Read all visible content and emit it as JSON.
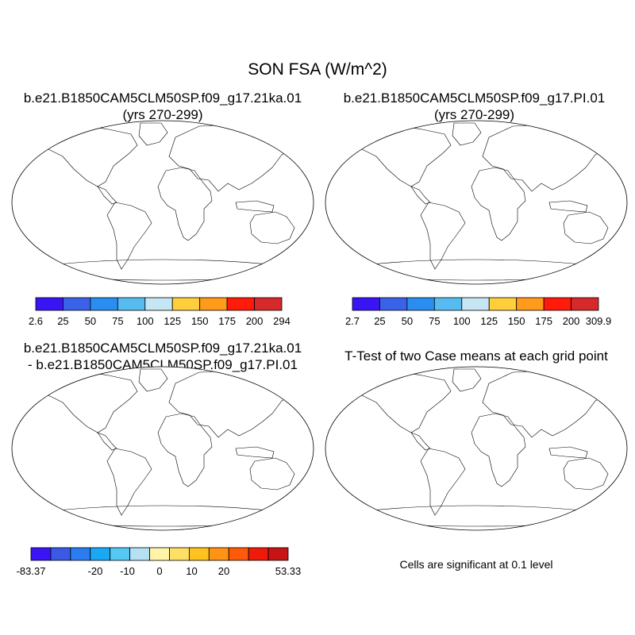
{
  "title": "SON FSA (W/m^2)",
  "panels": [
    {
      "title_line1": "b.e21.B1850CAM5CLM50SP.f09_g17.21ka.01",
      "title_line2": "(yrs 270-299)"
    },
    {
      "title_line1": "b.e21.B1850CAM5CLM50SP.f09_g17.PI.01",
      "title_line2": "(yrs 270-299)"
    },
    {
      "title_line1": "b.e21.B1850CAM5CLM50SP.f09_g17.21ka.01",
      "title_line2": "- b.e21.B1850CAM5CLM50SP.f09_g17.PI.01"
    },
    {
      "title_line1": "T-Test of two Case means at each grid point",
      "title_line2": ""
    }
  ],
  "colorbars": [
    {
      "labels": [
        "2.6",
        "25",
        "50",
        "75",
        "100",
        "125",
        "150",
        "175",
        "200",
        "294"
      ],
      "colors": [
        "#3a14f4",
        "#3a62e6",
        "#2a8ef0",
        "#56bcf0",
        "#c6e6f4",
        "#ffce3a",
        "#ff9a1a",
        "#ff1a0a",
        "#d62a2a"
      ]
    },
    {
      "labels": [
        "2.7",
        "25",
        "50",
        "75",
        "100",
        "125",
        "150",
        "175",
        "200",
        "309.9"
      ],
      "colors": [
        "#3a14f4",
        "#3a62e6",
        "#2a8ef0",
        "#56bcf0",
        "#c6e6f4",
        "#ffce3a",
        "#ff9a1a",
        "#ff1a0a",
        "#d62a2a"
      ]
    },
    {
      "labels": [
        "-83.37",
        "",
        "-20",
        "-10",
        "0",
        "10",
        "20",
        "",
        "53.33"
      ],
      "colors": [
        "#3a14f4",
        "#3a5ae6",
        "#2a7cf0",
        "#1aa8f4",
        "#56c8f4",
        "#b4e2f2",
        "#fff4a8",
        "#ffe066",
        "#ffc21e",
        "#ff9414",
        "#ff5a0a",
        "#f01a0a",
        "#c81414"
      ]
    }
  ],
  "significance_note": "Cells are significant at 0.1 level",
  "color_significant": "#ff0000"
}
